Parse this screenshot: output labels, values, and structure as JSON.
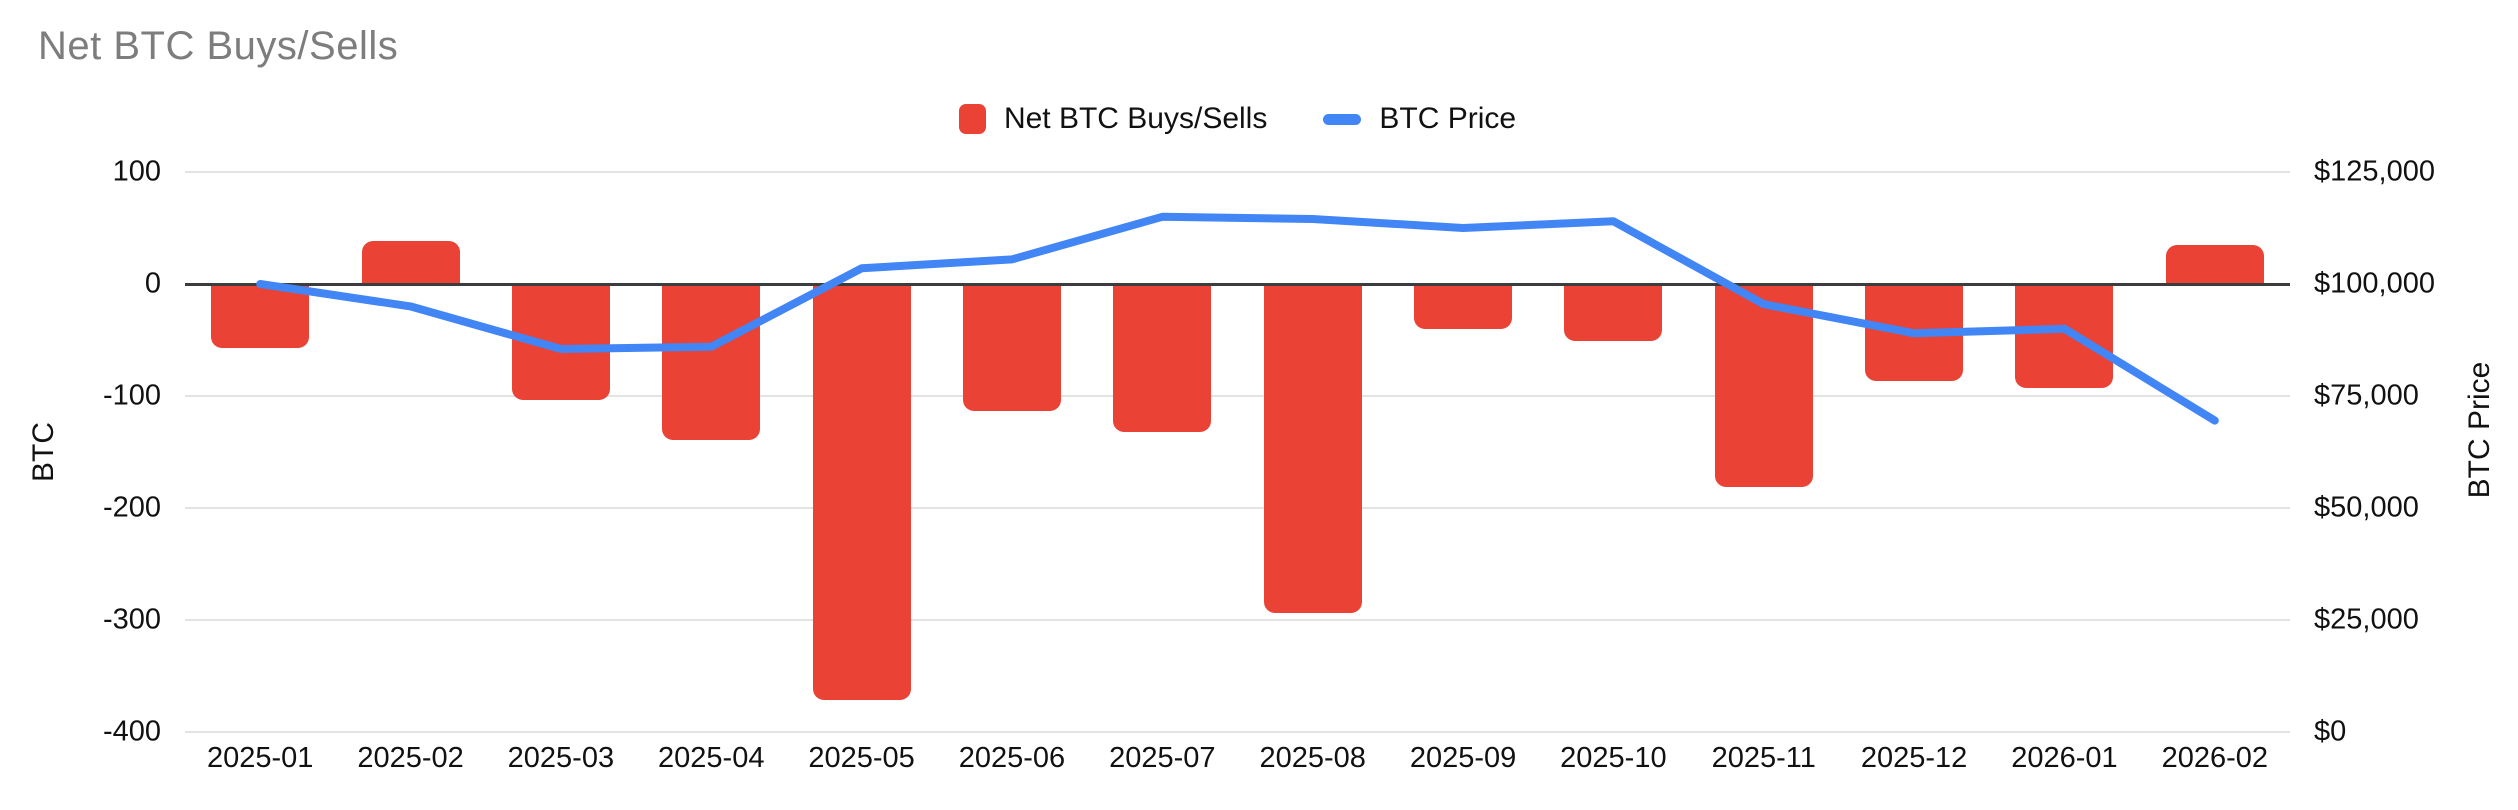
{
  "title": "Net BTC Buys/Sells",
  "legend": {
    "items": [
      {
        "label": "Net BTC Buys/Sells",
        "marker": "bar-swatch",
        "color": "#ea4335"
      },
      {
        "label": "BTC Price",
        "marker": "line-swatch",
        "color": "#4285f4"
      }
    ]
  },
  "left_axis": {
    "label": "BTC",
    "ticks": [
      "100",
      "0",
      "-100",
      "-200",
      "-300",
      "-400"
    ],
    "max": 100,
    "min": -400
  },
  "right_axis": {
    "label": "BTC Price",
    "ticks": [
      "$125,000",
      "$100,000",
      "$75,000",
      "$50,000",
      "$25,000",
      "$0"
    ],
    "max": 125000,
    "min": 0
  },
  "chart_data": {
    "type": "bar",
    "title": "Net BTC Buys/Sells",
    "categories": [
      "2025-01",
      "2025-02",
      "2025-03",
      "2025-04",
      "2025-05",
      "2025-06",
      "2025-07",
      "2025-08",
      "2025-09",
      "2025-10",
      "2025-11",
      "2025-12",
      "2026-01",
      "2026-02"
    ],
    "series": [
      {
        "name": "Net BTC Buys/Sells",
        "type": "bar",
        "axis": "left",
        "color": "#ea4335",
        "values": [
          -57,
          38,
          -104,
          -139,
          -371,
          -113,
          -132,
          -294,
          -40,
          -51,
          -181,
          -87,
          -93,
          35
        ]
      },
      {
        "name": "BTC Price",
        "type": "line",
        "axis": "right",
        "color": "#4285f4",
        "values": [
          100000,
          95000,
          85500,
          86000,
          103500,
          105500,
          115000,
          114500,
          112500,
          114000,
          95500,
          89000,
          90000,
          69500
        ]
      }
    ],
    "xlabel": "",
    "ylabel_left": "BTC",
    "ylabel_right": "BTC Price",
    "ylim_left": [
      -400,
      100
    ],
    "ylim_right": [
      0,
      125000
    ],
    "grid": true,
    "legend_position": "top-center",
    "zero_line": true
  },
  "colors": {
    "bar": "#ea4335",
    "line": "#4285f4",
    "gridline": "#e3e3e3",
    "zero_line": "#3c3c3c",
    "title": "#7d7d7d",
    "label": "#111111",
    "background": "#ffffff"
  }
}
